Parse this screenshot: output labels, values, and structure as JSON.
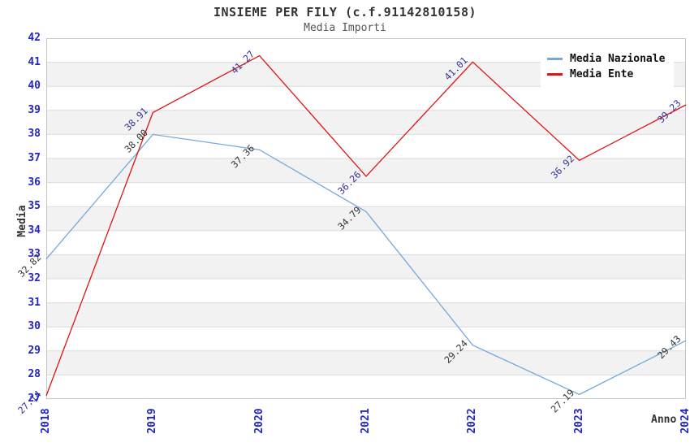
{
  "header": {
    "title": "INSIEME PER FILY (c.f.91142810158)",
    "subtitle": "Media Importi"
  },
  "chart_data": {
    "type": "line",
    "x": [
      2018,
      2019,
      2020,
      2021,
      2022,
      2023,
      2024
    ],
    "xlabel": "Anno",
    "ylabel": "Media",
    "ylim": [
      27,
      42
    ],
    "y_ticks": [
      27,
      28,
      29,
      30,
      31,
      32,
      33,
      34,
      35,
      36,
      37,
      38,
      39,
      40,
      41,
      42
    ],
    "grid": "horizontal",
    "legend_position": "top-right",
    "series": [
      {
        "name": "Media Nazionale",
        "color": "#74a9dd",
        "label_color": "#333333",
        "values": [
          32.82,
          38.0,
          37.36,
          34.79,
          29.24,
          27.19,
          29.43
        ]
      },
      {
        "name": "Media Ente",
        "color": "#e01414",
        "label_color": "#333399",
        "values": [
          27.14,
          38.91,
          41.27,
          36.26,
          41.01,
          36.92,
          39.23
        ]
      }
    ],
    "colors": {
      "band": "#f2f2f2",
      "grid": "#dcdcdc",
      "border": "#c6c6c6",
      "tick": "#2424cb",
      "title": "#333333",
      "subtitle": "#555555",
      "legend_bg": "#ffffff"
    }
  }
}
